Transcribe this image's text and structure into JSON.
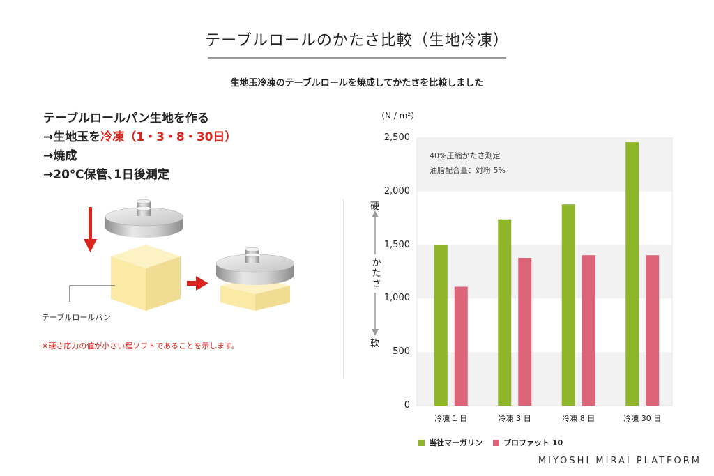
{
  "title": "テーブルロールのかたさ比較（生地冷凍）",
  "subtitle": "生地玉冷凍のテーブルロールを焼成してかたさを比較しました",
  "steps": {
    "line1": "テーブルロールパン生地を作る",
    "line2_prefix": "→生地玉を",
    "line2_red": "冷凍（1・3・8・30日）",
    "line3": "→焼成",
    "line4": "→20℃保管､1日後測定"
  },
  "illustration": {
    "bread_label": "テーブルロールパン",
    "note": "※硬さ応力の値が小さい程ソフトであることを示します。"
  },
  "colors": {
    "accent_red": "#d9251d",
    "bar_green": "#8fb52b",
    "bar_pink": "#dc6478",
    "band_gray": "#f2f2f2"
  },
  "chart_data": {
    "type": "bar",
    "unit": "（N / m²）",
    "categories": [
      "冷凍 1 日",
      "冷凍 3 日",
      "冷凍 8 日",
      "冷凍 30 日"
    ],
    "series": [
      {
        "name": "当社マーガリン",
        "values": [
          1500,
          1740,
          1880,
          2460
        ]
      },
      {
        "name": "プロファット 10",
        "values": [
          1110,
          1380,
          1405,
          1405
        ]
      }
    ],
    "yticks": [
      "2,500",
      "2,000",
      "1,500",
      "1,000",
      "500",
      "0"
    ],
    "ylim": [
      0,
      2500
    ],
    "annotations": [
      "40%圧縮かたさ測定",
      "油脂配合量：対粉 5%"
    ],
    "yaxis_hard": "硬",
    "yaxis_middle": "かたさ",
    "yaxis_soft": "軟",
    "legend_position": "bottom-left",
    "grid": "alternating bands"
  },
  "footer": "MIYOSHI MIRAI PLATFORM"
}
